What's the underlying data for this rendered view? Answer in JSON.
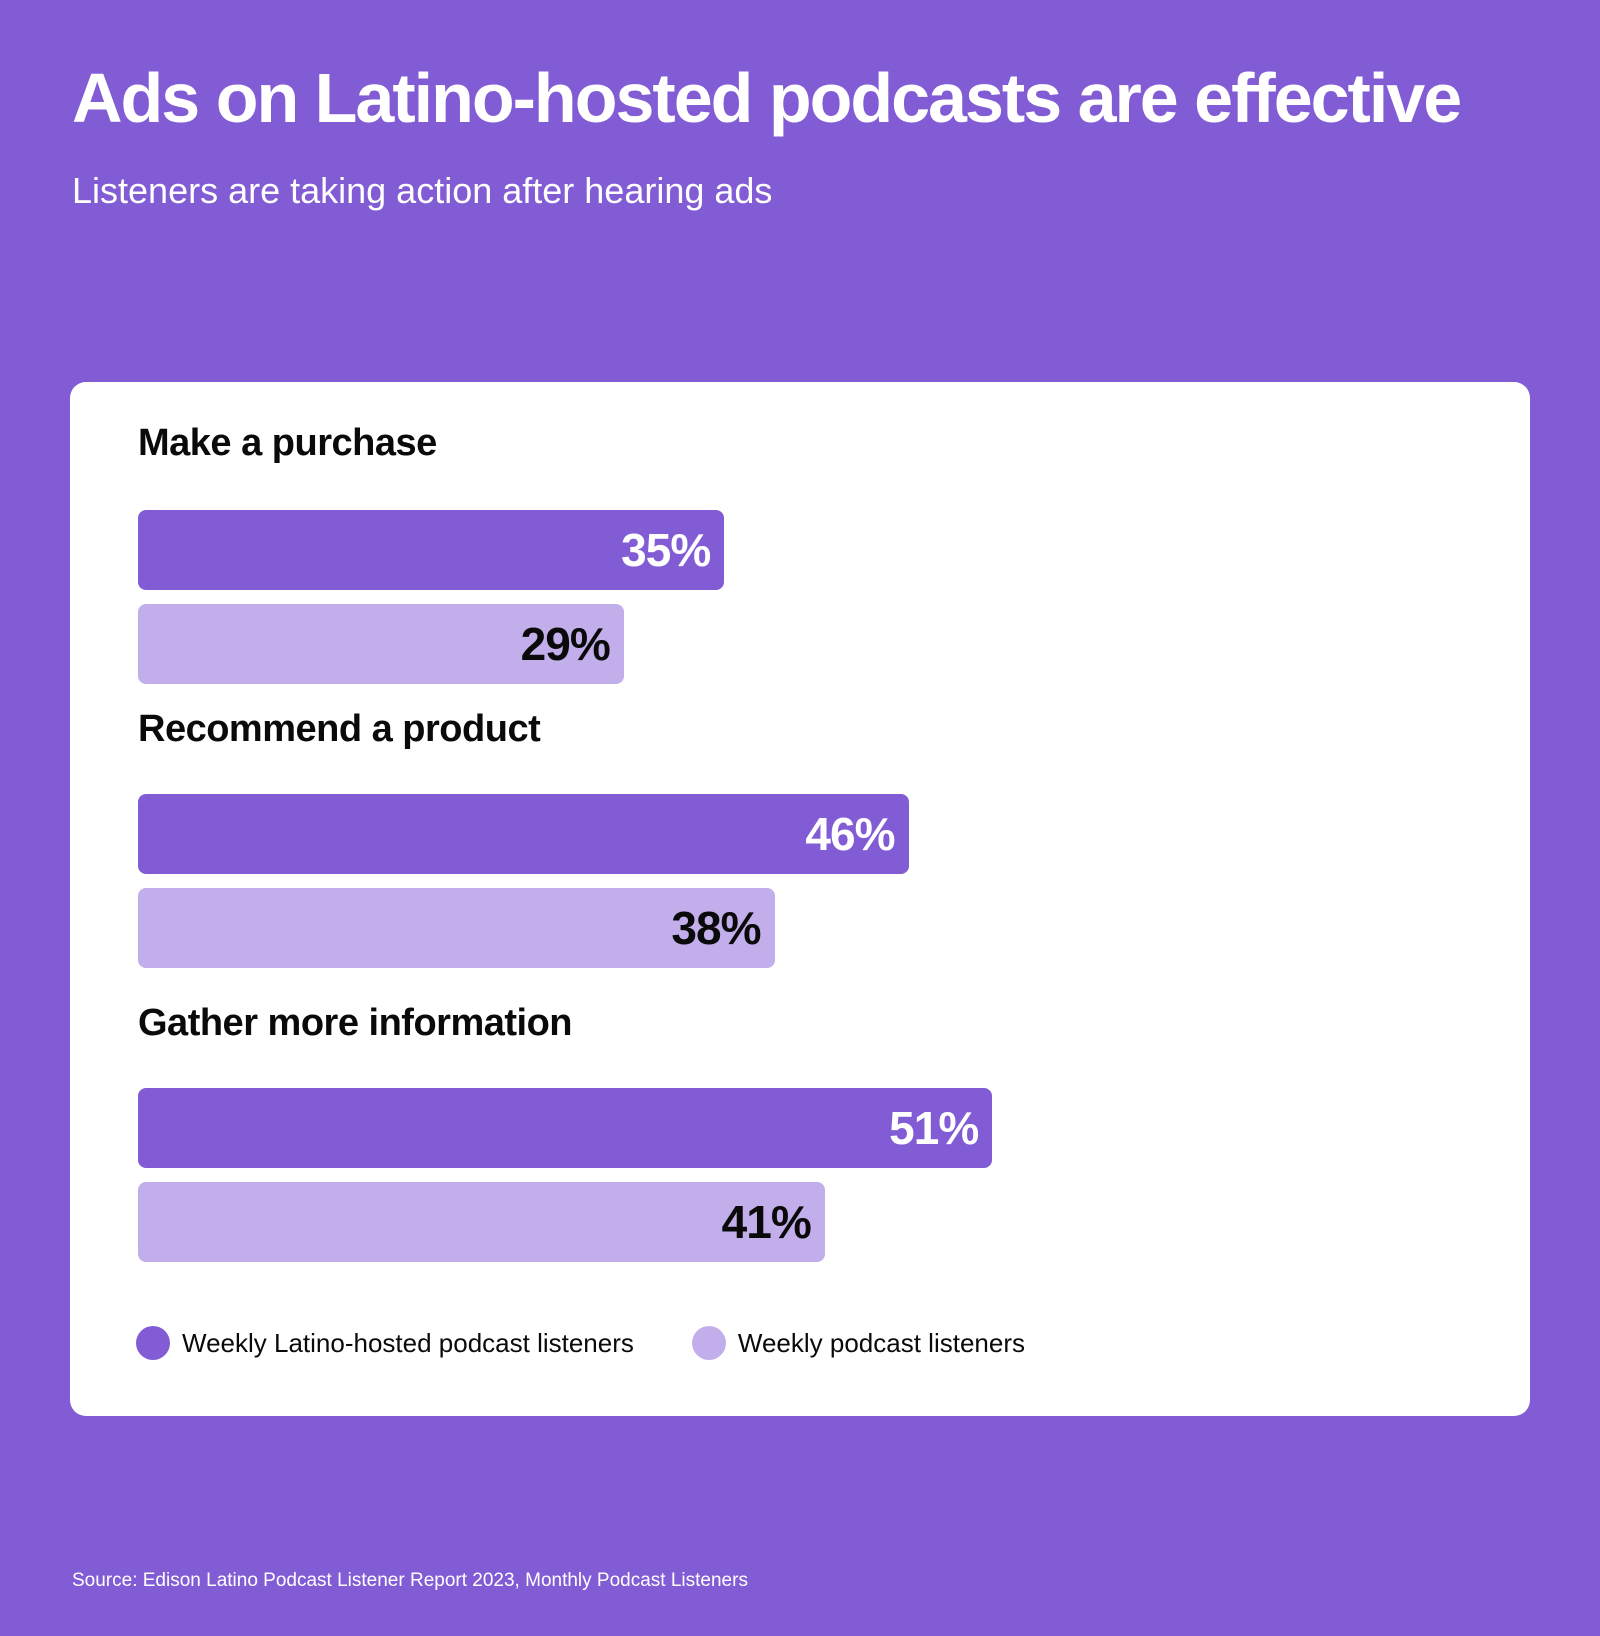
{
  "colors": {
    "background": "#825CD5",
    "card": "#FFFFFF",
    "series_primary": "#825CD5",
    "series_secondary": "#C3AEEC",
    "label_on_primary": "#FFFFFF",
    "label_on_secondary": "#0A0A0A"
  },
  "chart_data": {
    "type": "bar",
    "orientation": "horizontal",
    "title": "Ads on Latino-hosted podcasts are effective",
    "subtitle": "Listeners are taking action after hearing ads",
    "categories": [
      "Make a purchase",
      "Recommend a product",
      "Gather more information"
    ],
    "series": [
      {
        "name": "Weekly Latino-hosted podcast listeners",
        "values": [
          35,
          46,
          51
        ],
        "labels": [
          "35%",
          "46%",
          "51%"
        ]
      },
      {
        "name": "Weekly podcast listeners",
        "values": [
          29,
          38,
          41
        ],
        "labels": [
          "29%",
          "38%",
          "41%"
        ]
      }
    ],
    "unit": "%",
    "xlim": [
      0,
      100
    ],
    "grid": false,
    "legend": "bottom-left",
    "source": "Source: Edison Latino Podcast Listener Report 2023, Monthly Podcast Listeners"
  }
}
